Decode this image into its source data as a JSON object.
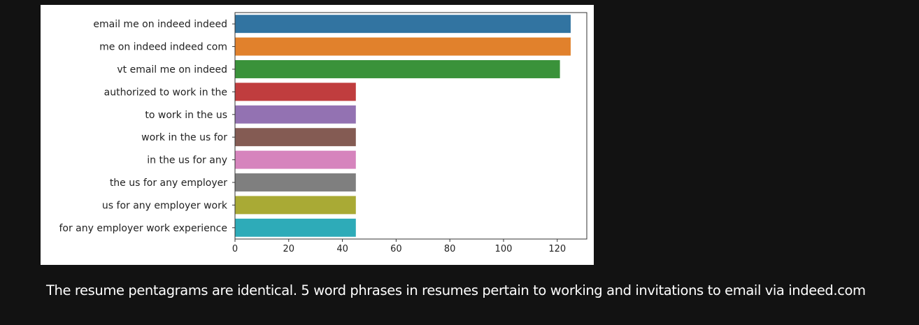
{
  "caption": "The resume pentagrams are identical. 5 word phrases in resumes pertain to working and invitations to email via indeed.com",
  "chart_data": {
    "type": "bar",
    "orientation": "horizontal",
    "title": "",
    "xlabel": "",
    "ylabel": "",
    "xlim": [
      0,
      131
    ],
    "xticks": [
      0,
      20,
      40,
      60,
      80,
      100,
      120
    ],
    "grid": false,
    "categories": [
      "email me on indeed indeed",
      "me on indeed indeed com",
      "vt email me on indeed",
      "authorized to work in the",
      "to work in the us",
      "work in the us for",
      "in the us for any",
      "the us for any employer",
      "us for any employer work",
      "for any employer work experience"
    ],
    "values": [
      125,
      125,
      121,
      45,
      45,
      45,
      45,
      45,
      45,
      45
    ],
    "colors": [
      "#3274a1",
      "#e1812c",
      "#3a923a",
      "#c03d3e",
      "#9372b2",
      "#845b53",
      "#d684bd",
      "#7f7f7f",
      "#a9aa35",
      "#2eabb8"
    ]
  }
}
